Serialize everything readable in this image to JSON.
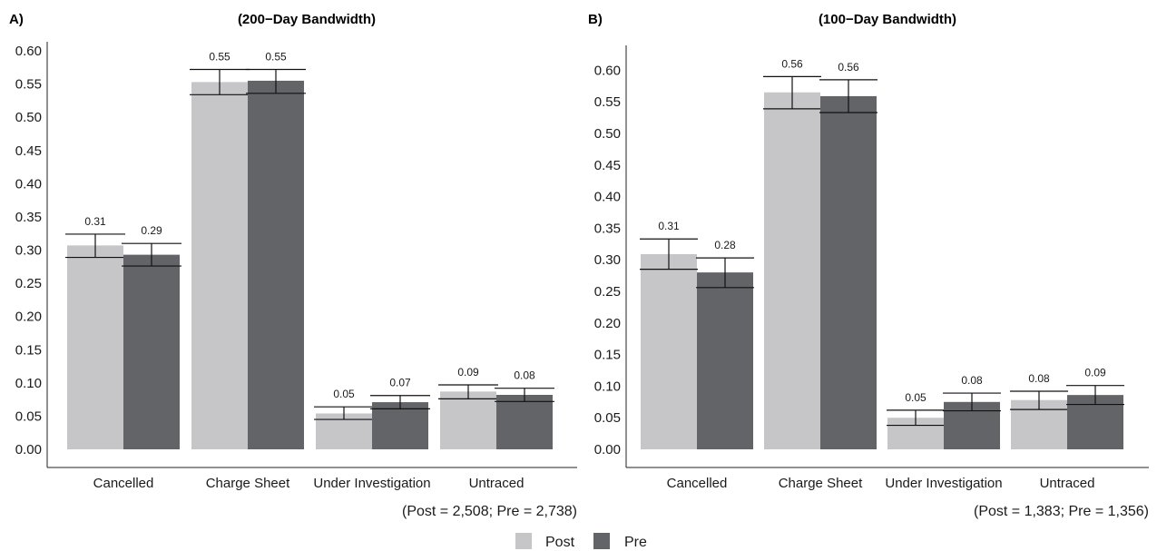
{
  "colors": {
    "post": "#c6c6c8",
    "pre": "#636468",
    "axis": "#222222",
    "error": "#111111"
  },
  "legend": {
    "items": [
      {
        "label": "Post",
        "color": "#c6c6c8"
      },
      {
        "label": "Pre",
        "color": "#636468"
      }
    ]
  },
  "chart_data": [
    {
      "type": "bar",
      "panel": "A)",
      "title": "(200−Day Bandwidth)",
      "note": "(Post = 2,508; Pre = 2,738)",
      "categories": [
        "Cancelled",
        "Charge Sheet",
        "Under Investigation",
        "Untraced"
      ],
      "ylim": [
        0,
        0.6
      ],
      "yticks": [
        "0.00",
        "0.05",
        "0.10",
        "0.15",
        "0.20",
        "0.25",
        "0.30",
        "0.35",
        "0.40",
        "0.45",
        "0.50",
        "0.55",
        "0.60"
      ],
      "grid": false,
      "legend_position": "bottom",
      "series": [
        {
          "name": "Post",
          "values": [
            0.307,
            0.553,
            0.054,
            0.087
          ],
          "ci_low": [
            0.289,
            0.534,
            0.045,
            0.076
          ],
          "ci_high": [
            0.324,
            0.572,
            0.064,
            0.097
          ],
          "labels": [
            "0.31",
            "0.55",
            "0.05",
            "0.09"
          ]
        },
        {
          "name": "Pre",
          "values": [
            0.293,
            0.555,
            0.071,
            0.082
          ],
          "ci_low": [
            0.276,
            0.536,
            0.061,
            0.072
          ],
          "ci_high": [
            0.31,
            0.572,
            0.081,
            0.092
          ],
          "labels": [
            "0.29",
            "0.55",
            "0.07",
            "0.08"
          ]
        }
      ]
    },
    {
      "type": "bar",
      "panel": "B)",
      "title": "(100−Day Bandwidth)",
      "note": "(Post = 1,383; Pre = 1,356)",
      "categories": [
        "Cancelled",
        "Charge Sheet",
        "Under Investigation",
        "Untraced"
      ],
      "ylim": [
        0,
        0.625
      ],
      "yticks": [
        "0.00",
        "0.05",
        "0.10",
        "0.15",
        "0.20",
        "0.25",
        "0.30",
        "0.35",
        "0.40",
        "0.45",
        "0.50",
        "0.55",
        "0.60"
      ],
      "grid": false,
      "legend_position": "bottom",
      "series": [
        {
          "name": "Post",
          "values": [
            0.309,
            0.565,
            0.05,
            0.078
          ],
          "ci_low": [
            0.285,
            0.539,
            0.038,
            0.063
          ],
          "ci_high": [
            0.333,
            0.59,
            0.062,
            0.092
          ],
          "labels": [
            "0.31",
            "0.56",
            "0.05",
            "0.08"
          ]
        },
        {
          "name": "Pre",
          "values": [
            0.28,
            0.559,
            0.075,
            0.086
          ],
          "ci_low": [
            0.256,
            0.533,
            0.061,
            0.071
          ],
          "ci_high": [
            0.303,
            0.585,
            0.089,
            0.101
          ],
          "labels": [
            "0.28",
            "0.56",
            "0.08",
            "0.09"
          ]
        }
      ]
    }
  ]
}
